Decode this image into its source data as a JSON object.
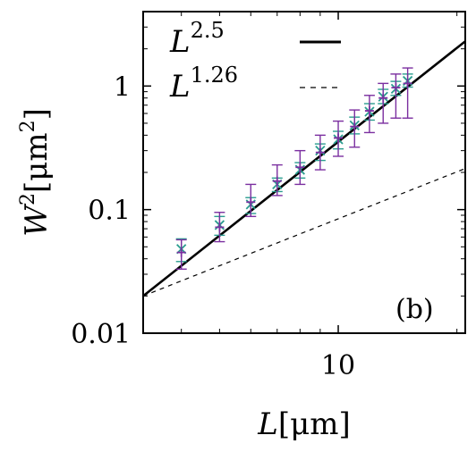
{
  "chart_data": {
    "type": "scatter",
    "panel_label": "(b)",
    "xlabel": {
      "var": "L",
      "unit": "[μm]"
    },
    "ylabel": {
      "var": "W",
      "sup": "2",
      "unit_open": "[μm",
      "unit_sup": "2",
      "unit_close": "]"
    },
    "x_scale": "log",
    "y_scale": "log",
    "xlim": [
      3.2,
      21
    ],
    "ylim": [
      0.01,
      4
    ],
    "x_ticks": [
      {
        "value": 10,
        "label": "10"
      }
    ],
    "y_ticks": [
      {
        "value": 0.01,
        "label": "0.01"
      },
      {
        "value": 0.1,
        "label": "0.1"
      },
      {
        "value": 1,
        "label": "1"
      }
    ],
    "legend": [
      {
        "base": "L",
        "exp": "2.5",
        "style": "solid"
      },
      {
        "base": "L",
        "exp": "1.26",
        "style": "dashed"
      }
    ],
    "legend_position": "top-left",
    "lines": [
      {
        "name": "L^2.5",
        "style": "solid",
        "x": [
          3.2,
          21
        ],
        "y": [
          0.02,
          2.3
        ]
      },
      {
        "name": "L^1.26",
        "style": "dashed",
        "x": [
          3.2,
          21
        ],
        "y": [
          0.02,
          0.215
        ]
      }
    ],
    "series": [
      {
        "marker": "x",
        "color": "#2a9d8f",
        "errorbar_color": "#2a9d8f",
        "x": [
          4.0,
          5.0,
          6.0,
          7.0,
          8.0,
          9.0,
          10.0,
          11.0,
          12.0,
          13.0,
          14.0,
          15.0
        ],
        "y": [
          0.048,
          0.075,
          0.11,
          0.16,
          0.21,
          0.3,
          0.37,
          0.48,
          0.62,
          0.82,
          0.95,
          1.1
        ],
        "y_err_low": [
          0.038,
          0.062,
          0.093,
          0.14,
          0.18,
          0.25,
          0.31,
          0.41,
          0.53,
          0.72,
          0.84,
          0.98
        ],
        "y_err_high": [
          0.058,
          0.088,
          0.125,
          0.18,
          0.24,
          0.34,
          0.43,
          0.56,
          0.72,
          0.94,
          1.09,
          1.25
        ]
      },
      {
        "marker": "+",
        "color": "#7b2fa0",
        "errorbar_color": "#7b2fa0",
        "x": [
          4.0,
          5.0,
          6.0,
          7.0,
          8.0,
          9.0,
          10.0,
          11.0,
          12.0,
          13.0,
          14.0,
          15.0
        ],
        "y": [
          0.045,
          0.072,
          0.115,
          0.17,
          0.22,
          0.29,
          0.38,
          0.47,
          0.63,
          0.8,
          0.97,
          1.05
        ],
        "y_err_low": [
          0.033,
          0.055,
          0.088,
          0.13,
          0.16,
          0.21,
          0.27,
          0.32,
          0.42,
          0.5,
          0.55,
          0.55
        ],
        "y_err_high": [
          0.057,
          0.095,
          0.16,
          0.23,
          0.3,
          0.4,
          0.52,
          0.64,
          0.84,
          1.05,
          1.25,
          1.4
        ]
      }
    ]
  }
}
